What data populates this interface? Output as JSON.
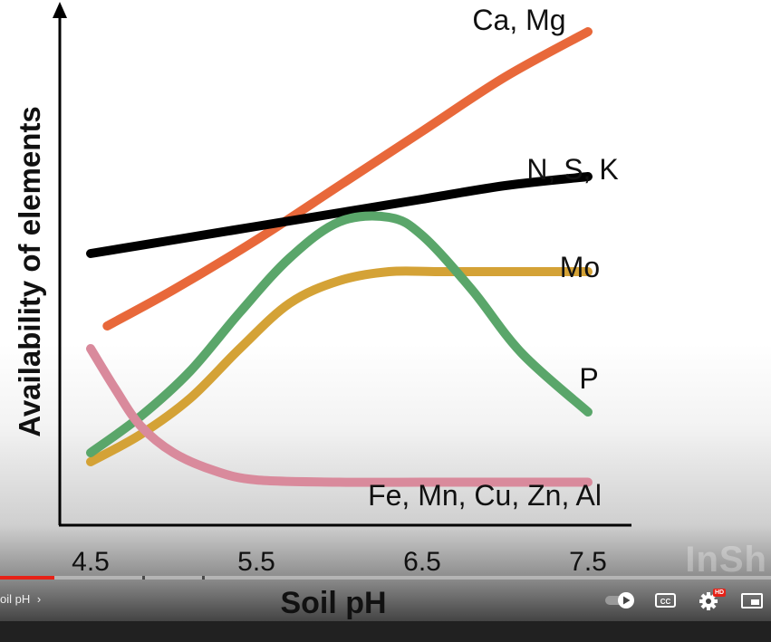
{
  "chart_data": {
    "type": "line",
    "xlabel": "Soil pH",
    "ylabel": "Availability of elements",
    "xticks": [
      "4.5",
      "5.5",
      "6.5",
      "7.5"
    ],
    "xlim": [
      4.4,
      7.7
    ],
    "ylim": [
      0,
      10
    ],
    "grid": false,
    "series": [
      {
        "name": "Ca, Mg",
        "color": "#e8683a",
        "x": [
          4.6,
          5.0,
          5.5,
          6.0,
          6.5,
          7.0,
          7.5
        ],
        "y": [
          3.6,
          4.4,
          5.5,
          6.7,
          7.9,
          9.1,
          10.1
        ]
      },
      {
        "name": "N, S, K",
        "color": "#000000",
        "x": [
          4.5,
          5.0,
          5.5,
          6.0,
          6.5,
          7.0,
          7.5
        ],
        "y": [
          5.2,
          5.5,
          5.8,
          6.1,
          6.4,
          6.7,
          6.9
        ]
      },
      {
        "name": "Mo",
        "color": "#d4a236",
        "x": [
          4.5,
          4.8,
          5.1,
          5.4,
          5.7,
          6.0,
          6.3,
          6.6,
          7.0,
          7.5
        ],
        "y": [
          0.6,
          1.2,
          2.0,
          3.1,
          4.1,
          4.6,
          4.8,
          4.8,
          4.8,
          4.8
        ]
      },
      {
        "name": "P",
        "color": "#5aa66a",
        "x": [
          4.5,
          4.8,
          5.1,
          5.4,
          5.7,
          6.0,
          6.3,
          6.5,
          6.8,
          7.1,
          7.5
        ],
        "y": [
          0.8,
          1.6,
          2.6,
          3.9,
          5.1,
          5.9,
          6.0,
          5.6,
          4.4,
          3.0,
          1.7
        ]
      },
      {
        "name": "Fe, Mn, Cu, Zn, Al",
        "color": "#d98a9c",
        "x": [
          4.5,
          4.65,
          4.8,
          5.0,
          5.25,
          5.5,
          6.0,
          6.5,
          7.0,
          7.5
        ],
        "y": [
          3.1,
          2.2,
          1.4,
          0.8,
          0.4,
          0.2,
          0.15,
          0.15,
          0.15,
          0.15
        ]
      }
    ]
  },
  "labels": {
    "ca_mg": "Ca, Mg",
    "nsk": "N, S, K",
    "mo": "Mo",
    "p": "P",
    "fe": "Fe, Mn, Cu, Zn, Al"
  },
  "player": {
    "chapter_label": "oil pH",
    "chapter_chevron": "›",
    "progress": 0.07,
    "watermark": "InSh",
    "controls": [
      {
        "name": "autoplay-toggle",
        "icon": "autoplay-toggle-icon"
      },
      {
        "name": "subtitles-button",
        "icon": "cc-icon",
        "text": "CC"
      },
      {
        "name": "settings-button",
        "icon": "gear-icon",
        "badge": "HD"
      },
      {
        "name": "miniplayer-button",
        "icon": "miniplayer-icon"
      }
    ]
  }
}
